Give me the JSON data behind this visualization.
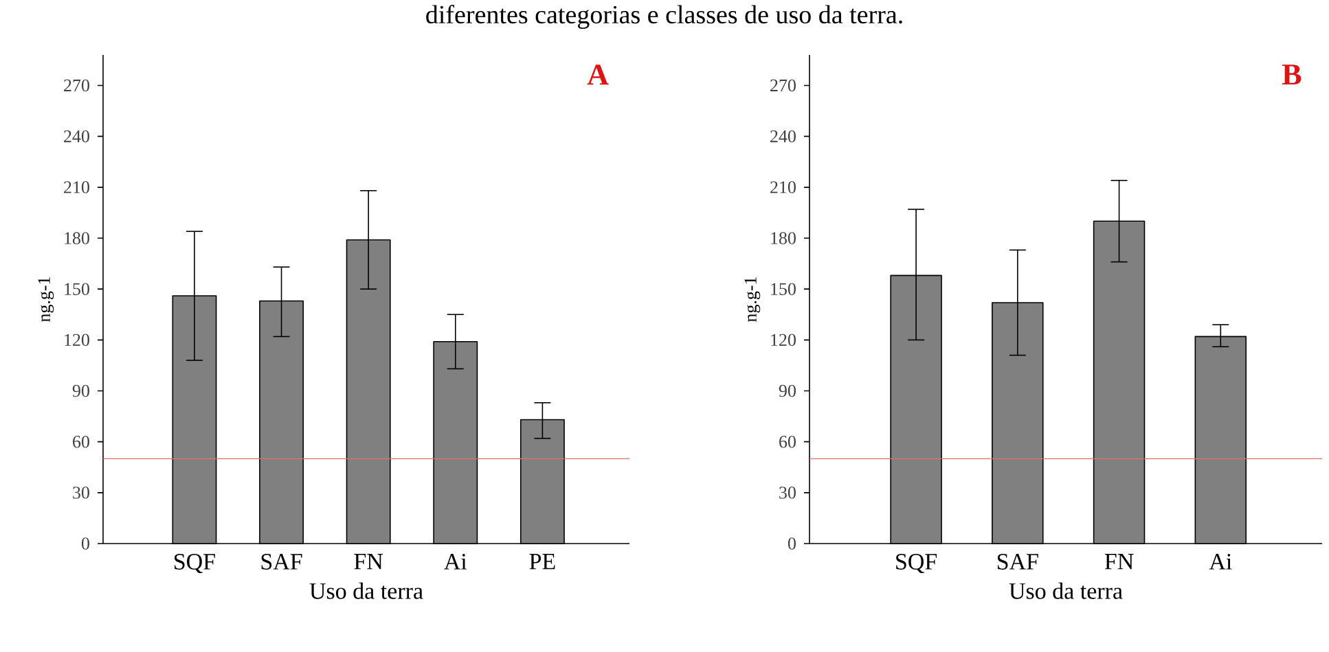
{
  "chart_data": [
    {
      "type": "bar",
      "title": "A",
      "annotations": [
        "diferentes categorias e classes de uso da terra."
      ],
      "xlabel": "Uso da terra",
      "ylabel": "ng.g-1",
      "categories": [
        "SQF",
        "SAF",
        "FN",
        "Ai",
        "PE"
      ],
      "values": [
        146,
        143,
        179,
        119,
        73
      ],
      "errors": [
        [
          108,
          184
        ],
        [
          122,
          163
        ],
        [
          150,
          208
        ],
        [
          103,
          135
        ],
        [
          62,
          83
        ]
      ],
      "color": "#808080",
      "ylim": [
        0,
        288
      ],
      "yticks": [
        0,
        30,
        60,
        90,
        120,
        150,
        180,
        210,
        240,
        270
      ],
      "ref_lines": [
        {
          "axis": "y",
          "value": 50,
          "color": "#e07070"
        }
      ],
      "grid": false
    },
    {
      "type": "bar",
      "title": "B",
      "xlabel": "Uso da terra",
      "ylabel": "ng.g-1",
      "categories": [
        "SQF",
        "SAF",
        "FN",
        "Ai"
      ],
      "values": [
        158,
        142,
        190,
        122
      ],
      "errors": [
        [
          120,
          197
        ],
        [
          111,
          173
        ],
        [
          166,
          214
        ],
        [
          116,
          129
        ]
      ],
      "color": "#808080",
      "ylim": [
        0,
        288
      ],
      "yticks": [
        0,
        30,
        60,
        90,
        120,
        150,
        180,
        210,
        240,
        270
      ],
      "ref_lines": [
        {
          "axis": "y",
          "value": 50,
          "color": "#e07070"
        }
      ],
      "grid": false
    }
  ]
}
